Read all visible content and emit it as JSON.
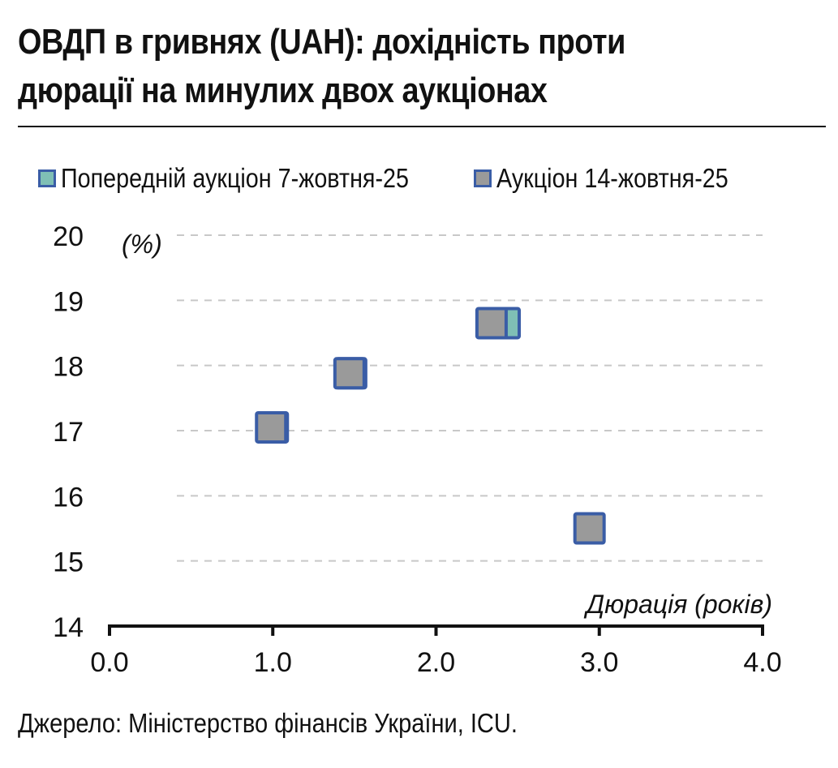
{
  "title_lines": [
    "ОВДП в гривнях (UAH): дохідність проти",
    "дюрації на минулих двох аукціонах"
  ],
  "source": "Джерело: Міністерство фінансів України, ICU.",
  "colors": {
    "previous_fill": "#7FBFB5",
    "current_fill": "#9A9A9A",
    "marker_border": "#3A5DA6",
    "grid": "#C8C8C8",
    "axis": "#111111"
  },
  "chart_data": {
    "type": "scatter",
    "ylabel": "(%)",
    "xlabel": "Дюрація (років)",
    "xlim": [
      0,
      4
    ],
    "ylim": [
      14,
      20
    ],
    "x_ticks": [
      "0.0",
      "1.0",
      "2.0",
      "3.0",
      "4.0"
    ],
    "y_ticks": [
      "14",
      "15",
      "16",
      "17",
      "18",
      "19",
      "20"
    ],
    "grid": "horizontal dashed",
    "legend_position": "top",
    "series": [
      {
        "name": "Попередній аукціон 7-жовтня-25",
        "points": [
          {
            "x": 1.0,
            "y": 17.05
          },
          {
            "x": 1.48,
            "y": 17.88
          },
          {
            "x": 2.42,
            "y": 18.65
          }
        ]
      },
      {
        "name": "Аукціон 14-жовтня-25",
        "points": [
          {
            "x": 0.99,
            "y": 17.05
          },
          {
            "x": 1.47,
            "y": 17.88
          },
          {
            "x": 2.34,
            "y": 18.65
          },
          {
            "x": 2.94,
            "y": 15.5
          }
        ]
      }
    ]
  }
}
